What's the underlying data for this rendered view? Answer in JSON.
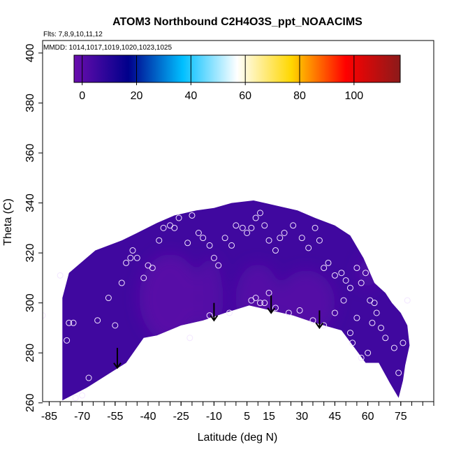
{
  "chart_data": {
    "type": "heatmap",
    "title": "ATOM3 Northbound C2H4O3S_ppt_NOAACIMS",
    "flights_note": "Flts: 7,8,9,10,11,12",
    "mmdd_note": "MMDD: 1014,1017,1019,1020,1023,1025",
    "xlabel": "Latitude (deg N)",
    "ylabel": "Theta (C)",
    "xlim": [
      -90,
      90
    ],
    "ylim": [
      260,
      405
    ],
    "x_ticks": [
      "-85",
      "-70",
      "-55",
      "-40",
      "-25",
      "-10",
      "5",
      "15",
      "30",
      "45",
      "60",
      "75"
    ],
    "x_tick_values": [
      -85,
      -70,
      -55,
      -40,
      -25,
      -10,
      5,
      15,
      30,
      45,
      60,
      75
    ],
    "y_ticks": [
      "260",
      "280",
      "300",
      "320",
      "340",
      "360",
      "380",
      "400"
    ],
    "y_tick_values": [
      260,
      280,
      300,
      320,
      340,
      360,
      380,
      400
    ],
    "colorbar": {
      "range": [
        -3,
        117
      ],
      "ticks": [
        "0",
        "20",
        "40",
        "60",
        "80",
        "100"
      ],
      "tick_values": [
        0,
        20,
        40,
        60,
        80,
        100
      ],
      "colors": [
        "#6a0dad",
        "#00008b",
        "#00bfff",
        "#ffffff",
        "#ffd700",
        "#ff0000",
        "#8b1a1a"
      ]
    },
    "field": {
      "background_value": 5,
      "low_regions": [
        {
          "lat": -30,
          "theta": 302,
          "value": 0
        },
        {
          "lat": -12,
          "theta": 302,
          "value": 1
        },
        {
          "lat": 10,
          "theta": 302,
          "value": 1
        },
        {
          "lat": 32,
          "theta": 300,
          "value": 1
        },
        {
          "lat": 60,
          "theta": 312,
          "value": 1
        }
      ]
    },
    "coverage_boundary": [
      [
        -79,
        261
      ],
      [
        -68,
        266
      ],
      [
        -50,
        276
      ],
      [
        -42,
        286
      ],
      [
        -36,
        287
      ],
      [
        -25,
        291
      ],
      [
        -15,
        293
      ],
      [
        -5,
        296
      ],
      [
        6,
        299
      ],
      [
        16,
        297
      ],
      [
        26,
        295
      ],
      [
        36,
        292
      ],
      [
        48,
        289
      ],
      [
        54,
        282
      ],
      [
        59,
        276
      ],
      [
        65,
        276
      ],
      [
        70,
        268
      ],
      [
        74,
        262
      ],
      [
        76,
        269
      ],
      [
        77,
        275
      ],
      [
        79,
        283
      ],
      [
        78,
        291
      ],
      [
        75,
        296
      ],
      [
        71,
        300
      ],
      [
        68,
        304
      ],
      [
        63,
        308
      ],
      [
        58,
        318
      ],
      [
        52,
        327
      ],
      [
        45,
        331
      ],
      [
        36,
        334
      ],
      [
        28,
        337
      ],
      [
        18,
        339
      ],
      [
        8,
        341
      ],
      [
        -2,
        340
      ],
      [
        -10,
        338
      ],
      [
        -18,
        337
      ],
      [
        -28,
        335
      ],
      [
        -36,
        332
      ],
      [
        -45,
        328
      ],
      [
        -52,
        325
      ],
      [
        -58,
        323
      ],
      [
        -64,
        321
      ],
      [
        -68,
        318
      ],
      [
        -76,
        312
      ],
      [
        -79,
        302
      ]
    ],
    "sample_points": [
      [
        -88,
        295
      ],
      [
        -80,
        311
      ],
      [
        -77,
        285
      ],
      [
        -76,
        292
      ],
      [
        -74,
        292
      ],
      [
        -73,
        262
      ],
      [
        -70,
        263
      ],
      [
        -67,
        270
      ],
      [
        -63,
        293
      ],
      [
        -58,
        302
      ],
      [
        -55,
        291
      ],
      [
        -52,
        308
      ],
      [
        -50,
        316
      ],
      [
        -48,
        318
      ],
      [
        -47,
        321
      ],
      [
        -45,
        318
      ],
      [
        -42,
        310
      ],
      [
        -40,
        315
      ],
      [
        -38,
        314
      ],
      [
        -35,
        325
      ],
      [
        -33,
        330
      ],
      [
        -30,
        331
      ],
      [
        -28,
        330
      ],
      [
        -26,
        334
      ],
      [
        -22,
        324
      ],
      [
        -20,
        335
      ],
      [
        -17,
        328
      ],
      [
        -15,
        326
      ],
      [
        -12,
        323
      ],
      [
        -10,
        318
      ],
      [
        -8,
        315
      ],
      [
        -5,
        326
      ],
      [
        -2,
        323
      ],
      [
        0,
        331
      ],
      [
        3,
        330
      ],
      [
        5,
        328
      ],
      [
        7,
        330
      ],
      [
        9,
        334
      ],
      [
        11,
        336
      ],
      [
        13,
        331
      ],
      [
        15,
        325
      ],
      [
        18,
        321
      ],
      [
        20,
        326
      ],
      [
        22,
        328
      ],
      [
        26,
        331
      ],
      [
        30,
        326
      ],
      [
        33,
        322
      ],
      [
        36,
        330
      ],
      [
        38,
        325
      ],
      [
        40,
        314
      ],
      [
        42,
        316
      ],
      [
        45,
        311
      ],
      [
        48,
        312
      ],
      [
        50,
        309
      ],
      [
        52,
        306
      ],
      [
        55,
        314
      ],
      [
        57,
        308
      ],
      [
        59,
        312
      ],
      [
        61,
        301
      ],
      [
        63,
        300
      ],
      [
        -21,
        286
      ],
      [
        -12,
        295
      ],
      [
        -3,
        296
      ],
      [
        7,
        301
      ],
      [
        9,
        302
      ],
      [
        11,
        300
      ],
      [
        13,
        300
      ],
      [
        15,
        304
      ],
      [
        18,
        298
      ],
      [
        24,
        296
      ],
      [
        29,
        297
      ],
      [
        35,
        293
      ],
      [
        40,
        291
      ],
      [
        45,
        296
      ],
      [
        49,
        301
      ],
      [
        52,
        288
      ],
      [
        53,
        284
      ],
      [
        55,
        294
      ],
      [
        57,
        278
      ],
      [
        60,
        280
      ],
      [
        62,
        292
      ],
      [
        64,
        296
      ],
      [
        66,
        290
      ],
      [
        68,
        286
      ],
      [
        72,
        282
      ],
      [
        74,
        272
      ],
      [
        76,
        284
      ],
      [
        78,
        301
      ]
    ],
    "arrows": [
      {
        "lat": -54,
        "theta_top": 282,
        "theta_bottom": 274
      },
      {
        "lat": -10,
        "theta_top": 300,
        "theta_bottom": 293
      },
      {
        "lat": 16,
        "theta_top": 303,
        "theta_bottom": 296
      },
      {
        "lat": 38,
        "theta_top": 297,
        "theta_bottom": 290
      }
    ]
  }
}
